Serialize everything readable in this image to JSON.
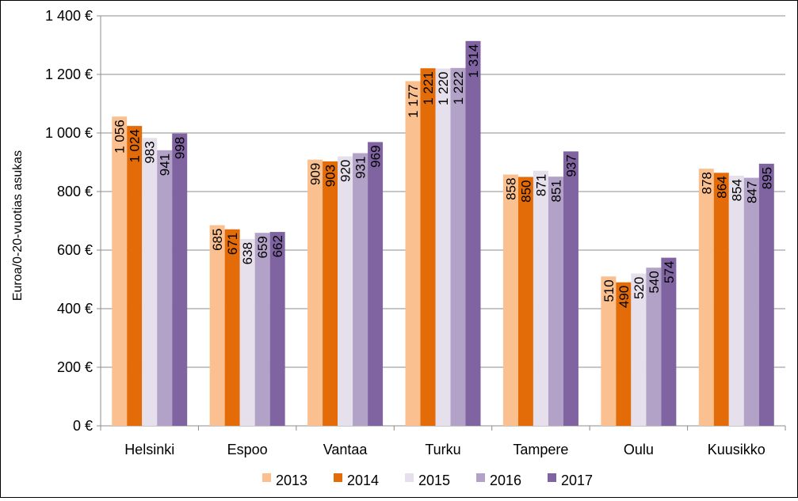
{
  "chart_data": {
    "type": "bar",
    "title": "",
    "xlabel": "",
    "ylabel": "Euroa/0-20-vuotias asukas",
    "ylim": [
      0,
      1400
    ],
    "yticks": [
      0,
      200,
      400,
      600,
      800,
      1000,
      1200,
      1400
    ],
    "ytick_labels": [
      "0 €",
      "200 €",
      "400 €",
      "600 €",
      "800 €",
      "1 000 €",
      "1 200 €",
      "1 400 €"
    ],
    "grid": "horizontal",
    "legend_position": "bottom",
    "categories": [
      "Helsinki",
      "Espoo",
      "Vantaa",
      "Turku",
      "Tampere",
      "Oulu",
      "Kuusikko"
    ],
    "series": [
      {
        "name": "2013",
        "color": "#FAC08F",
        "values": [
          1056,
          685,
          909,
          1177,
          858,
          510,
          878
        ],
        "labels": [
          "1 056",
          "685",
          "909",
          "1 177",
          "858",
          "510",
          "878"
        ]
      },
      {
        "name": "2014",
        "color": "#E36C09",
        "values": [
          1024,
          671,
          903,
          1221,
          850,
          490,
          864
        ],
        "labels": [
          "1 024",
          "671",
          "903",
          "1 221",
          "850",
          "490",
          "864"
        ]
      },
      {
        "name": "2015",
        "color": "#E5E0EC",
        "values": [
          983,
          638,
          920,
          1220,
          871,
          520,
          854
        ],
        "labels": [
          "983",
          "638",
          "920",
          "1 220",
          "871",
          "520",
          "854"
        ]
      },
      {
        "name": "2016",
        "color": "#B3A2C7",
        "values": [
          941,
          659,
          931,
          1222,
          851,
          540,
          847
        ],
        "labels": [
          "941",
          "659",
          "931",
          "1 222",
          "851",
          "540",
          "847"
        ]
      },
      {
        "name": "2017",
        "color": "#8064A2",
        "values": [
          998,
          662,
          969,
          1314,
          937,
          574,
          895
        ],
        "labels": [
          "998",
          "662",
          "969",
          "1 314",
          "937",
          "574",
          "895"
        ]
      }
    ]
  }
}
